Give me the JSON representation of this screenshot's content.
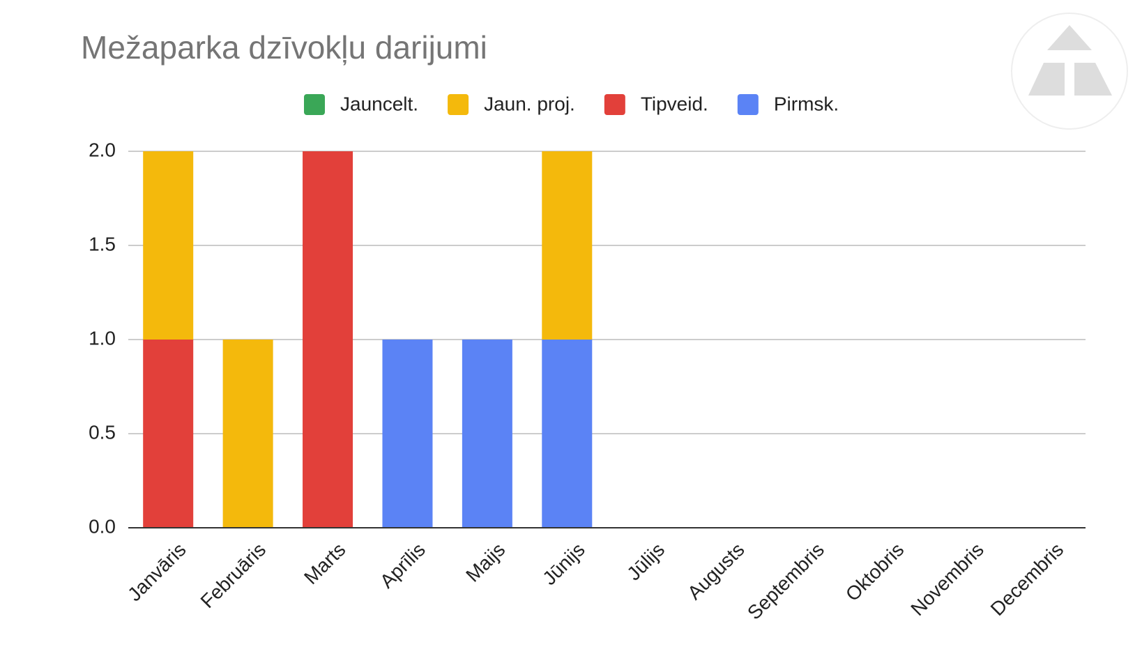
{
  "chart_data": {
    "type": "stacked-bar",
    "title": "Mežaparka dzīvokļu darijumi",
    "categories": [
      "Janvāris",
      "Februāris",
      "Marts",
      "Aprīlis",
      "Maijs",
      "Jūnijs",
      "Jūlijs",
      "Augusts",
      "Septembris",
      "Oktobris",
      "Novembris",
      "Decembris"
    ],
    "series": [
      {
        "name": "Jauncelt.",
        "color": "#3aa757",
        "values": [
          0,
          0,
          0,
          0,
          0,
          0,
          0,
          0,
          0,
          0,
          0,
          0
        ]
      },
      {
        "name": "Jaun. proj.",
        "color": "#f4b90c",
        "values": [
          1,
          1,
          0,
          0,
          0,
          1,
          0,
          0,
          0,
          0,
          0,
          0
        ]
      },
      {
        "name": "Tipveid.",
        "color": "#e2403a",
        "values": [
          1,
          0,
          2,
          0,
          0,
          0,
          0,
          0,
          0,
          0,
          0,
          0
        ]
      },
      {
        "name": "Pirmsk.",
        "color": "#5b83f5",
        "values": [
          0,
          0,
          0,
          1,
          1,
          1,
          0,
          0,
          0,
          0,
          0,
          0
        ]
      }
    ],
    "ylim": [
      0,
      2
    ],
    "yticks": [
      {
        "value": 0,
        "label": "0.0"
      },
      {
        "value": 0.5,
        "label": "0.5"
      },
      {
        "value": 1,
        "label": "1.0"
      },
      {
        "value": 1.5,
        "label": "1.5"
      },
      {
        "value": 2,
        "label": "2.0"
      }
    ],
    "grid": true,
    "legend": "top"
  }
}
